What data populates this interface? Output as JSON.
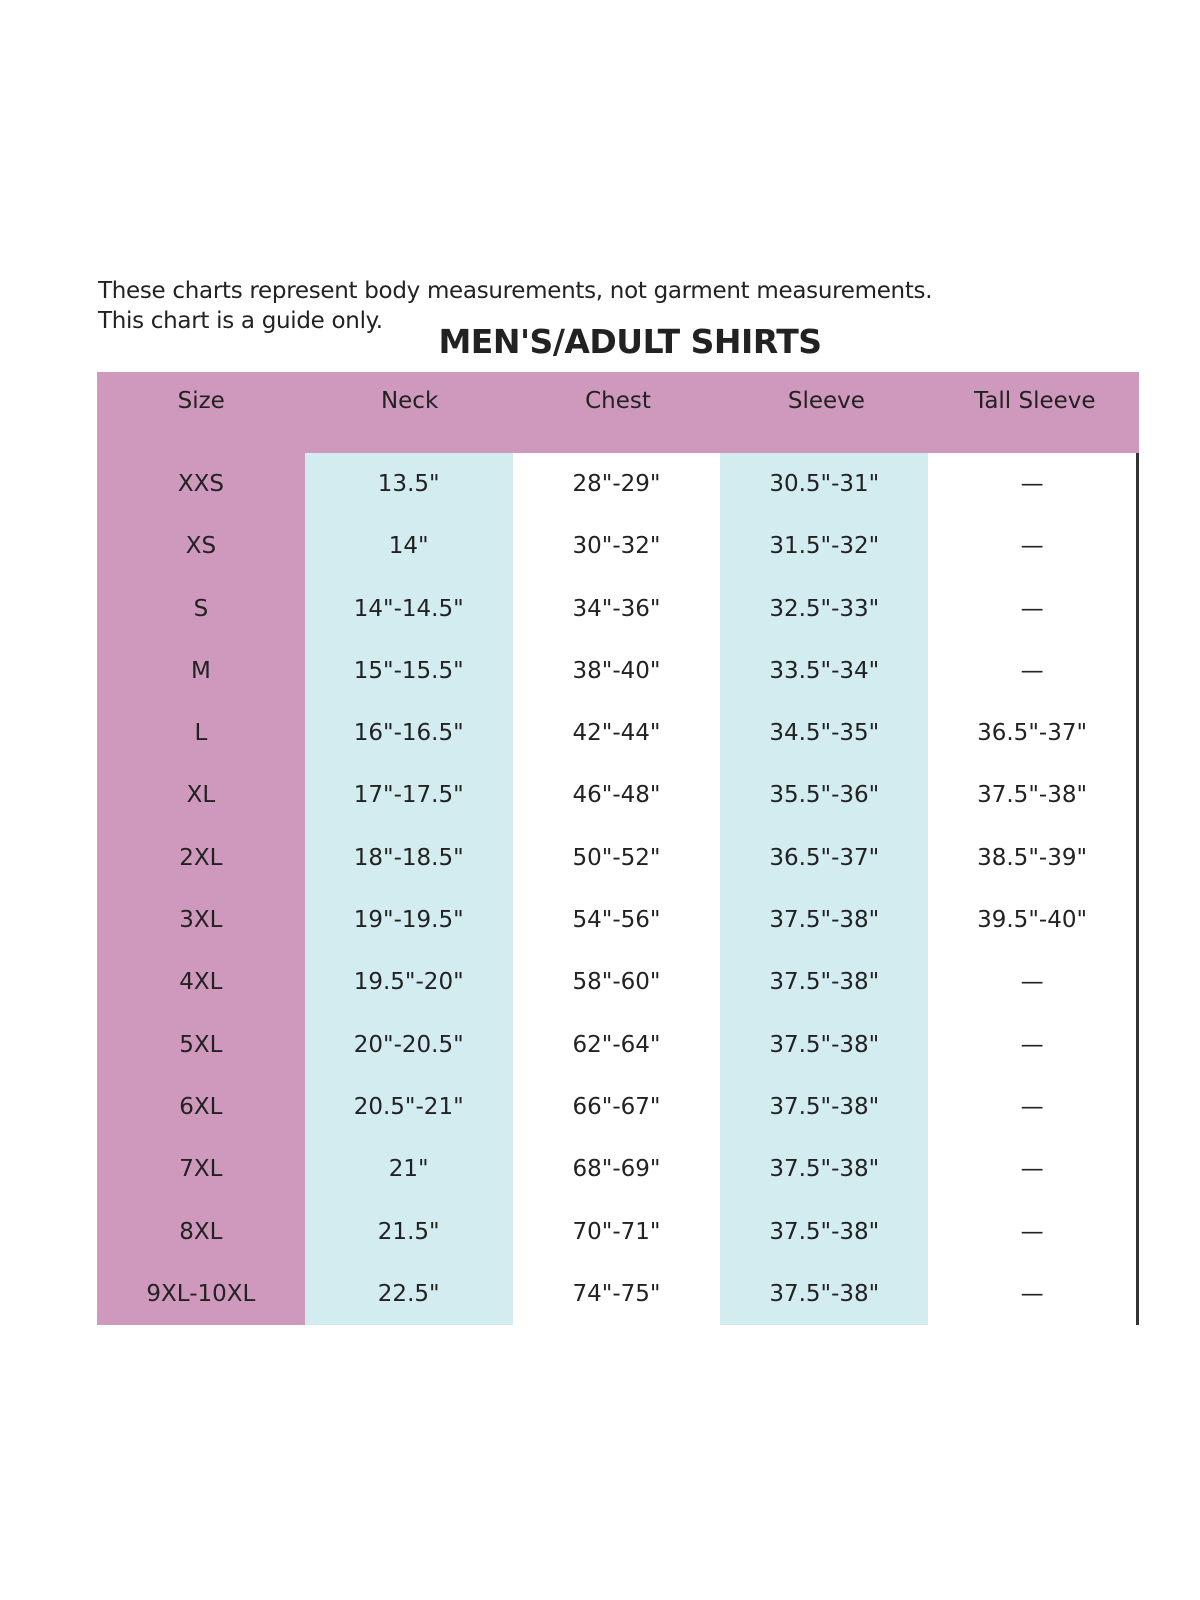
{
  "note_lines": [
    "These charts represent body measurements, not garment measurements.",
    "This chart is a guide only."
  ],
  "title": "MEN'S/ADULT SHIRTS",
  "colors": {
    "header_and_size_column": "#cf98bd",
    "neck_and_sleeve_columns": "#d3ecf0"
  },
  "columns": [
    "Size",
    "Neck",
    "Chest",
    "Sleeve",
    "Tall Sleeve"
  ],
  "rows": [
    [
      "XXS",
      "13.5\"",
      "28\"-29\"",
      "30.5\"-31\"",
      "—"
    ],
    [
      "XS",
      "14\"",
      "30\"-32\"",
      "31.5\"-32\"",
      "—"
    ],
    [
      "S",
      "14\"-14.5\"",
      "34\"-36\"",
      "32.5\"-33\"",
      "—"
    ],
    [
      "M",
      "15\"-15.5\"",
      "38\"-40\"",
      "33.5\"-34\"",
      "—"
    ],
    [
      "L",
      "16\"-16.5\"",
      "42\"-44\"",
      "34.5\"-35\"",
      "36.5\"-37\""
    ],
    [
      "XL",
      "17\"-17.5\"",
      "46\"-48\"",
      "35.5\"-36\"",
      "37.5\"-38\""
    ],
    [
      "2XL",
      "18\"-18.5\"",
      "50\"-52\"",
      "36.5\"-37\"",
      "38.5\"-39\""
    ],
    [
      "3XL",
      "19\"-19.5\"",
      "54\"-56\"",
      "37.5\"-38\"",
      "39.5\"-40\""
    ],
    [
      "4XL",
      "19.5\"-20\"",
      "58\"-60\"",
      "37.5\"-38\"",
      "—"
    ],
    [
      "5XL",
      "20\"-20.5\"",
      "62\"-64\"",
      "37.5\"-38\"",
      "—"
    ],
    [
      "6XL",
      "20.5\"-21\"",
      "66\"-67\"",
      "37.5\"-38\"",
      "—"
    ],
    [
      "7XL",
      "21\"",
      "68\"-69\"",
      "37.5\"-38\"",
      "—"
    ],
    [
      "8XL",
      "21.5\"",
      "70\"-71\"",
      "37.5\"-38\"",
      "—"
    ],
    [
      "9XL-10XL",
      "22.5\"",
      "74\"-75\"",
      "37.5\"-38\"",
      "—"
    ]
  ]
}
